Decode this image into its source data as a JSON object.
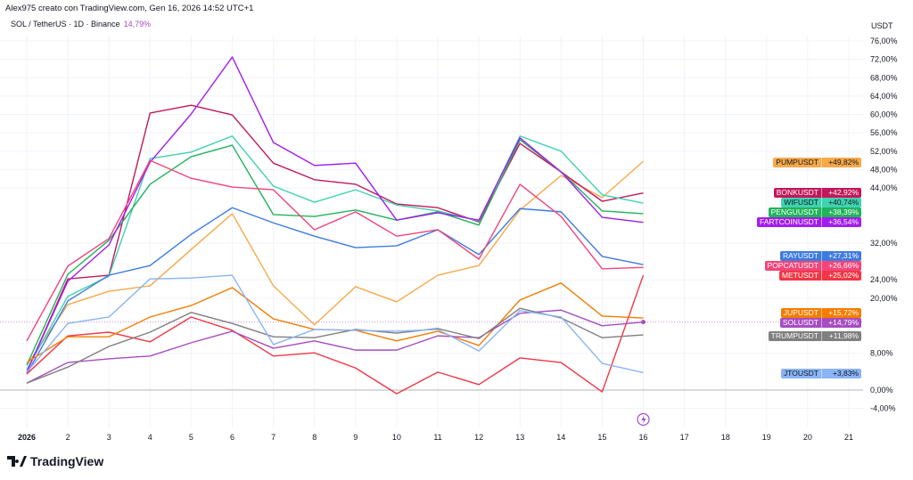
{
  "header": {
    "attribution": "Alex975 creato con TradingView.com, Gen 16, 2026 14:52 UTC+1"
  },
  "symbol": {
    "name": "SOL / TetherUS · 1D · Binance",
    "change": "14,79%"
  },
  "axis": {
    "unit": "USDT"
  },
  "logo": {
    "text": "TradingView"
  },
  "chart_data": {
    "type": "line",
    "title": "",
    "xlabel": "",
    "ylabel": "",
    "x": [
      1,
      2,
      3,
      4,
      5,
      6,
      7,
      8,
      9,
      10,
      11,
      12,
      13,
      14,
      15,
      16
    ],
    "x_tick_labels": [
      "2026",
      "2",
      "3",
      "4",
      "5",
      "6",
      "7",
      "8",
      "9",
      "10",
      "11",
      "12",
      "13",
      "14",
      "15",
      "16",
      "17",
      "18",
      "19",
      "20",
      "21"
    ],
    "y_tick_labels": [
      "76,00%",
      "72,00%",
      "68,00%",
      "64,00%",
      "60,00%",
      "56,00%",
      "52,00%",
      "48,00%",
      "44,00%",
      "32,00%",
      "24,00%",
      "20,00%",
      "8,00%",
      "0,00%",
      "-4,00%"
    ],
    "ylim": [
      -4,
      76
    ],
    "xlim": [
      1,
      21
    ],
    "grid": true,
    "y_unit": "%",
    "series": [
      {
        "name": "PUMPUSDT",
        "label": "+49,82%",
        "color": "#f7a94a",
        "text": "#131722",
        "values": [
          5.4,
          18.6,
          21.5,
          22.7,
          30.6,
          38.4,
          22.7,
          14.2,
          22.5,
          19.2,
          25.0,
          27.1,
          39.2,
          46.7,
          41.9,
          49.8
        ]
      },
      {
        "name": "BONKUSDT",
        "label": "+42,92%",
        "color": "#c2185b",
        "text": "#ffffff",
        "values": [
          3.9,
          24.2,
          25.0,
          60.3,
          62.0,
          59.9,
          49.4,
          45.8,
          44.8,
          40.5,
          39.7,
          36.6,
          53.7,
          47.5,
          41.1,
          42.9
        ]
      },
      {
        "name": "WIFUSDT",
        "label": "+40,74%",
        "color": "#3fd2b0",
        "text": "#131722",
        "values": [
          4.5,
          20.4,
          24.8,
          50.4,
          51.8,
          55.3,
          44.4,
          40.9,
          43.6,
          40.3,
          39.0,
          36.8,
          55.3,
          52.0,
          42.5,
          40.7
        ]
      },
      {
        "name": "PENGUUSDT",
        "label": "+38,39%",
        "color": "#1fb35a",
        "text": "#ffffff",
        "values": [
          5.4,
          25.2,
          32.6,
          44.8,
          50.8,
          53.3,
          38.2,
          37.8,
          39.2,
          37.0,
          38.8,
          35.9,
          54.5,
          47.5,
          39.0,
          38.4
        ]
      },
      {
        "name": "FARTCOINUSDT",
        "label": "+36,54%",
        "color": "#a21cf0",
        "text": "#ffffff",
        "values": [
          3.9,
          23.7,
          31.6,
          49.6,
          60.1,
          72.5,
          53.9,
          48.9,
          49.4,
          37.0,
          38.6,
          37.0,
          54.9,
          47.5,
          37.6,
          36.5
        ]
      },
      {
        "name": "RAYUSDT",
        "label": "+27,31%",
        "color": "#3d7be0",
        "text": "#ffffff",
        "values": [
          3.5,
          19.4,
          25.0,
          27.1,
          33.9,
          39.7,
          36.4,
          33.5,
          31.0,
          31.4,
          34.9,
          29.5,
          39.5,
          38.8,
          29.1,
          27.3
        ]
      },
      {
        "name": "POPCATUSDT",
        "label": "+26,66%",
        "color": "#f2457a",
        "text": "#ffffff",
        "values": [
          10.7,
          27.0,
          33.0,
          50.0,
          46.1,
          44.2,
          43.6,
          34.9,
          38.8,
          33.5,
          34.9,
          28.5,
          44.8,
          37.8,
          26.4,
          26.7
        ]
      },
      {
        "name": "METUSDT",
        "label": "+25,02%",
        "color": "#f23645",
        "text": "#ffffff",
        "values": [
          3.5,
          11.8,
          12.6,
          10.5,
          15.9,
          13.0,
          7.4,
          8.1,
          4.8,
          -0.8,
          3.9,
          1.2,
          7.0,
          6.0,
          -0.4,
          25.0
        ]
      },
      {
        "name": "JUPUSDT",
        "label": "+15,72%",
        "color": "#f57c00",
        "text": "#ffffff",
        "values": [
          6.0,
          11.6,
          11.6,
          15.9,
          18.4,
          22.3,
          15.5,
          13.2,
          13.0,
          10.7,
          12.8,
          9.7,
          19.6,
          23.3,
          16.1,
          15.7
        ]
      },
      {
        "name": "SOLUSDT",
        "label": "+14,79%",
        "color": "#a64dc1",
        "text": "#ffffff",
        "values": [
          1.5,
          6.0,
          6.8,
          7.4,
          10.3,
          12.8,
          9.1,
          10.7,
          8.7,
          8.7,
          11.8,
          11.4,
          16.7,
          17.4,
          14.0,
          14.8
        ]
      },
      {
        "name": "TRUMPUSDT",
        "label": "+11,98%",
        "color": "#7f7f7f",
        "text": "#ffffff",
        "values": [
          1.5,
          5.0,
          9.5,
          12.6,
          16.9,
          14.5,
          11.6,
          11.4,
          13.2,
          12.4,
          13.4,
          11.2,
          17.8,
          15.7,
          11.4,
          12.0
        ]
      },
      {
        "name": "JTOUSDT",
        "label": "+3,83%",
        "color": "#8ab4f8",
        "text": "#131722",
        "values": [
          3.9,
          14.5,
          15.9,
          24.2,
          24.4,
          25.0,
          9.9,
          13.2,
          13.0,
          12.8,
          13.2,
          8.5,
          17.3,
          15.9,
          5.8,
          3.8
        ]
      }
    ]
  }
}
